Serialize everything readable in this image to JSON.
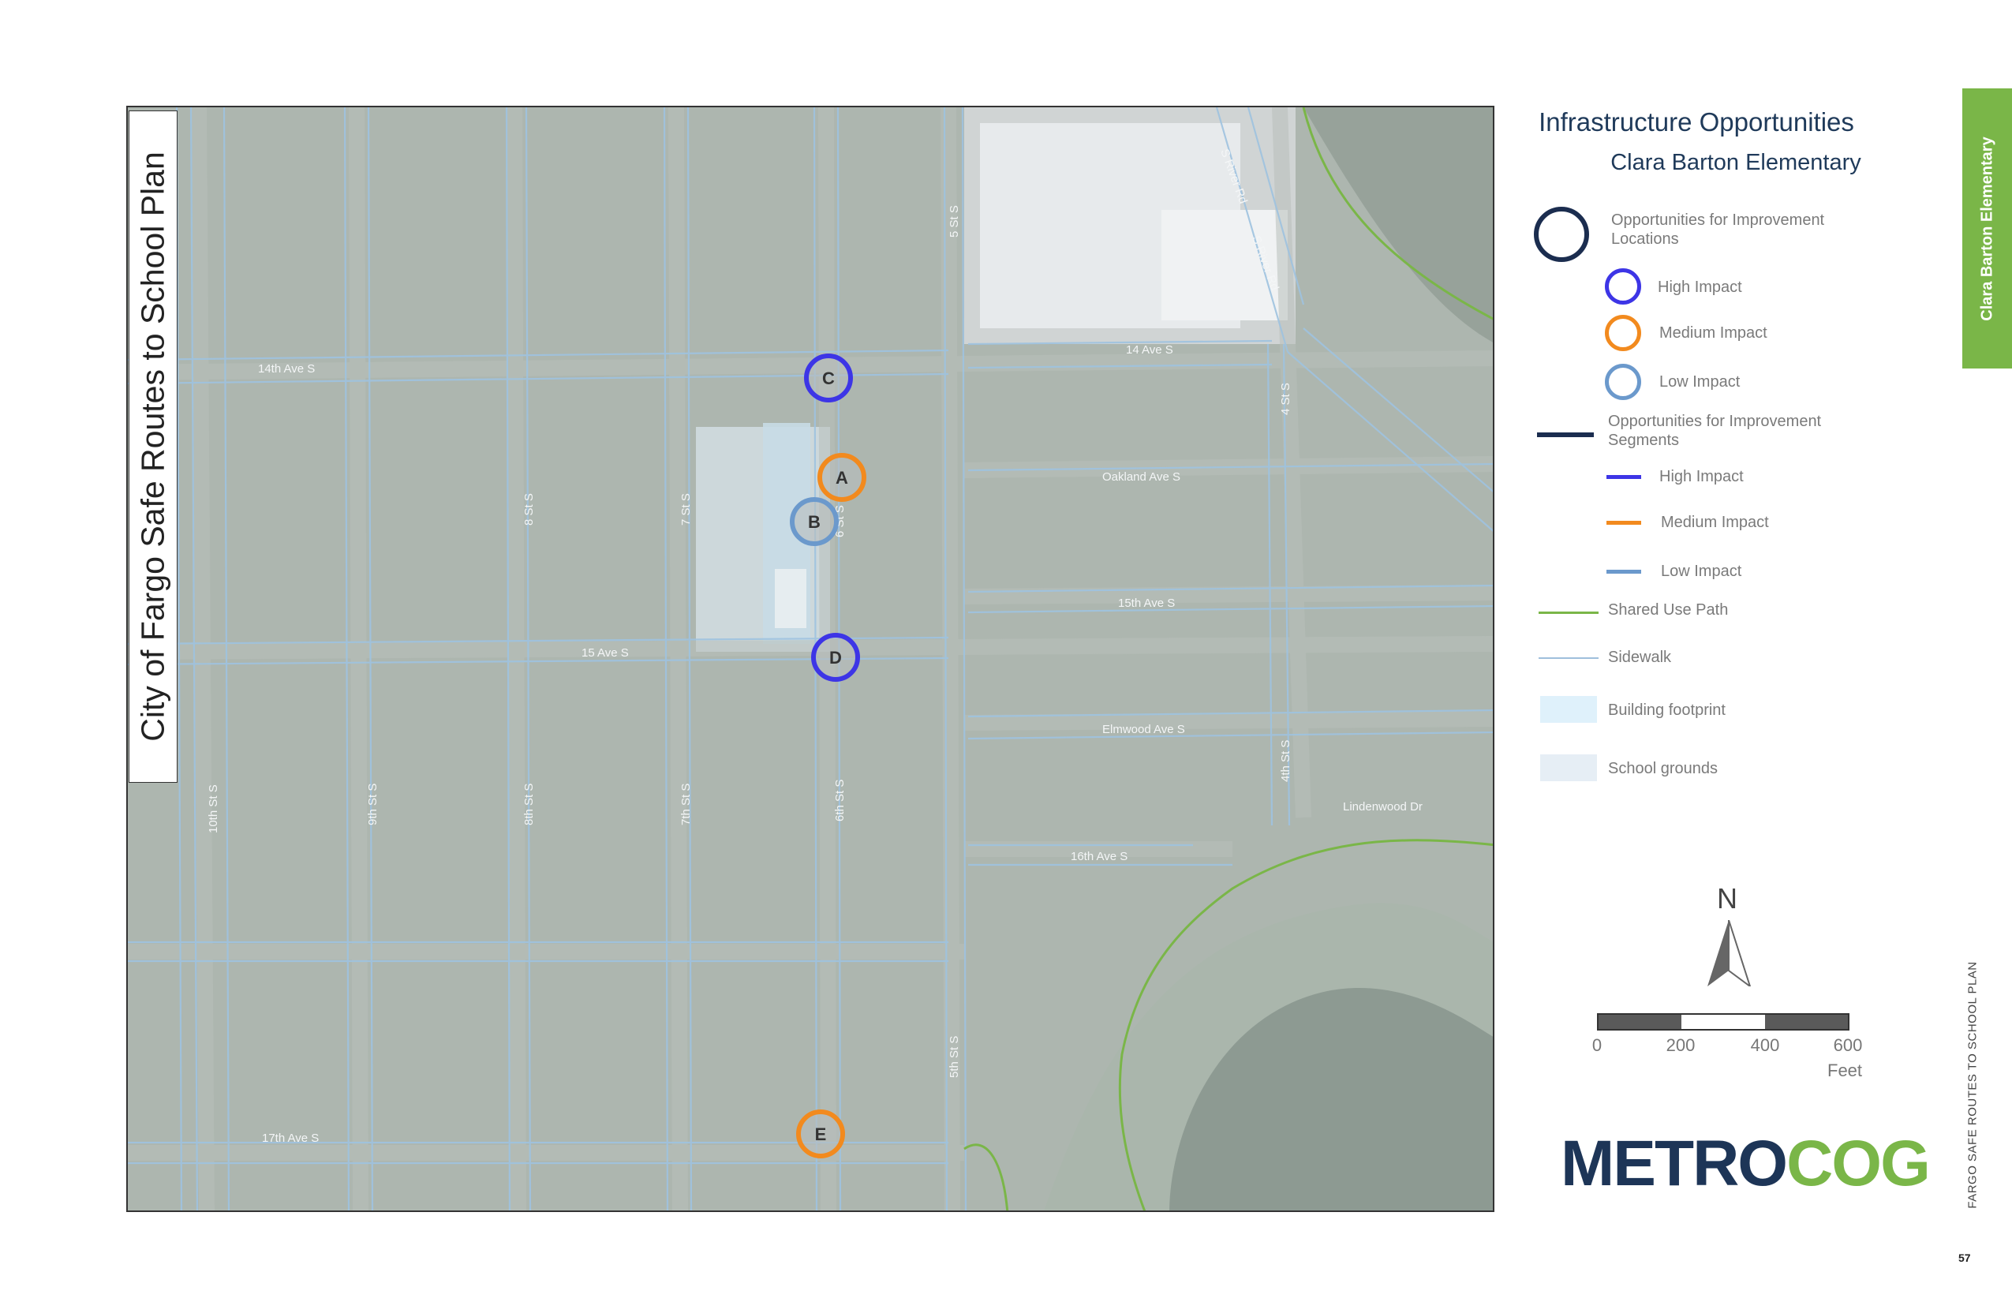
{
  "map": {
    "title": "City of Fargo Safe Routes to School Plan",
    "streets": {
      "ave_14_west": "14th Ave S",
      "ave_14_east": "14 Ave S",
      "ave_15_west": "15 Ave S",
      "ave_15_east": "15th Ave S",
      "oakland": "Oakland Ave S",
      "elmwood": "Elmwood Ave S",
      "lindenwood": "Lindenwood Dr",
      "ave_16": "16th Ave S",
      "ave_17": "17th Ave S",
      "st_10": "10th St S",
      "st_9": "9th St S",
      "st_8_north": "8 St S",
      "st_8_south": "8th St S",
      "st_7_north": "7 St S",
      "st_7_south": "7th St S",
      "st_6_north": "6 St S",
      "st_6_south": "6th St S",
      "st_5_north": "5 St S",
      "st_5_south": "5th St S",
      "st_4_north": "4 St S",
      "st_4_south": "4th St S",
      "river_rd_1": "S River Rd",
      "river_rd_2": "S River Rd"
    },
    "markers": [
      {
        "label": "C",
        "impact": "high"
      },
      {
        "label": "A",
        "impact": "medium"
      },
      {
        "label": "B",
        "impact": "low"
      },
      {
        "label": "D",
        "impact": "high"
      },
      {
        "label": "E",
        "impact": "medium"
      }
    ]
  },
  "legend": {
    "title": "Infrastructure Opportunities",
    "subtitle": "Clara Barton Elementary",
    "locations_heading": "Opportunities for Improvement Locations",
    "high": "High Impact",
    "medium": "Medium Impact",
    "low": "Low Impact",
    "segments_heading": "Opportunities for Improvement Segments",
    "seg_high": "High Impact",
    "seg_medium": "Medium Impact",
    "seg_low": "Low Impact",
    "shared_use_path": "Shared Use Path",
    "sidewalk": "Sidewalk",
    "building_footprint": "Building footprint",
    "school_grounds": "School grounds"
  },
  "north_arrow": {
    "letter": "N"
  },
  "scale": {
    "ticks": [
      "0",
      "200",
      "400",
      "600"
    ],
    "unit": "Feet"
  },
  "logo": {
    "part1": "METRO",
    "part2": "COG"
  },
  "side_tab": "Clara Barton Elementary",
  "footer_vertical": "FARGO SAFE ROUTES TO SCHOOL PLAN",
  "page_number": "57",
  "colors": {
    "high": "#3d35e6",
    "medium": "#f28a1e",
    "low": "#6b99cc",
    "locations_outline": "#1b2d4f",
    "segments_dark": "#1b2d4f",
    "shared_use_path": "#7ab648",
    "sidewalk": "#9fbfdc",
    "accent_green": "#7ab648",
    "brand_navy": "#1d3557"
  }
}
